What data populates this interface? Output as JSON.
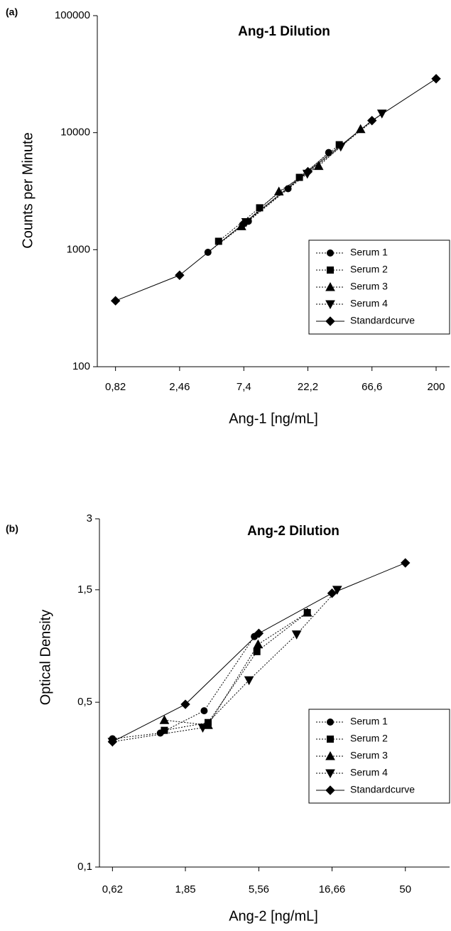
{
  "chart_data": [
    {
      "type": "line",
      "panel_label": "(a)",
      "title": "Ang-1 Dilution",
      "x_label": "Ang-1 [ng/mL]",
      "y_label": "Counts per Minute",
      "xscale": "log",
      "yscale": "log",
      "xlim": [
        0.6,
        252
      ],
      "ylim": [
        100,
        100000
      ],
      "xticks": [
        {
          "value": 0.82,
          "label": "0,82"
        },
        {
          "value": 2.46,
          "label": "2,46"
        },
        {
          "value": 7.4,
          "label": "7,4"
        },
        {
          "value": 22.2,
          "label": "22,2"
        },
        {
          "value": 66.6,
          "label": "66,6"
        },
        200
      ],
      "yticks": [
        100,
        1000,
        10000,
        100000
      ],
      "legend": "lower right",
      "series": [
        {
          "name": "Serum 1",
          "color": "#000000",
          "marker": "circle",
          "linestyle": "dotted",
          "x": [
            4.0,
            8.0,
            15.8,
            31.7
          ],
          "values": [
            950,
            1750,
            3320,
            6760
          ]
        },
        {
          "name": "Serum 2",
          "color": "#000000",
          "marker": "square",
          "linestyle": "dotted",
          "x": [
            4.8,
            9.7,
            19.2,
            38
          ],
          "values": [
            1180,
            2280,
            4150,
            7890
          ]
        },
        {
          "name": "Serum 3",
          "color": "#000000",
          "marker": "triangle",
          "linestyle": "dotted",
          "x": [
            7.1,
            13.5,
            26.7,
            54.8
          ],
          "values": [
            1585,
            3140,
            5190,
            10720
          ]
        },
        {
          "name": "Serum 4",
          "color": "#000000",
          "marker": "triangle-down",
          "linestyle": "dotted",
          "x": [
            7.7,
            22,
            39,
            79
          ],
          "values": [
            1720,
            4460,
            7600,
            14580
          ]
        },
        {
          "name": "Standardcurve",
          "color": "#000000",
          "marker": "diamond",
          "linestyle": "solid",
          "x": [
            0.82,
            2.46,
            7.4,
            22.2,
            66.6,
            200
          ],
          "values": [
            366,
            605,
            1676,
            4641,
            12680,
            28900
          ]
        }
      ]
    },
    {
      "type": "line",
      "panel_label": "(b)",
      "title": "Ang-2 Dilution",
      "x_label": "Ang-2 [ng/mL]",
      "y_label": "Optical Density",
      "xscale": "log",
      "yscale": "log",
      "xlim": [
        0.51,
        97
      ],
      "ylim": [
        0.1,
        3
      ],
      "xticks": [
        {
          "value": 0.62,
          "label": "0,62"
        },
        {
          "value": 1.85,
          "label": "1,85"
        },
        {
          "value": 5.56,
          "label": "5,56"
        },
        {
          "value": 16.66,
          "label": "16,66"
        },
        50
      ],
      "yticks": [
        {
          "value": 0.1,
          "label": "0,1"
        },
        {
          "value": 0.5,
          "label": "0,5"
        },
        {
          "value": 1.5,
          "label": "1,5"
        },
        3
      ],
      "legend": "lower right",
      "series": [
        {
          "name": "Serum 1",
          "color": "#000000",
          "marker": "circle",
          "linestyle": "dotted",
          "x": [
            0.62,
            1.27,
            2.45,
            5.2
          ],
          "values": [
            0.35,
            0.37,
            0.46,
            0.95
          ]
        },
        {
          "name": "Serum 2",
          "color": "#000000",
          "marker": "square",
          "linestyle": "dotted",
          "x": [
            1.35,
            2.6,
            5.4,
            11.5
          ],
          "values": [
            0.38,
            0.41,
            0.82,
            1.2
          ]
        },
        {
          "name": "Serum 3",
          "color": "#000000",
          "marker": "triangle",
          "linestyle": "dotted",
          "x": [
            1.35,
            2.6,
            5.5,
            11.5
          ],
          "values": [
            0.42,
            0.4,
            0.88,
            1.2
          ]
        },
        {
          "name": "Serum 4",
          "color": "#000000",
          "marker": "triangle-down",
          "linestyle": "dotted",
          "x": [
            0.62,
            2.4,
            4.8,
            9.8,
            18
          ],
          "values": [
            0.34,
            0.39,
            0.62,
            0.97,
            1.5
          ]
        },
        {
          "name": "Standardcurve",
          "color": "#000000",
          "marker": "diamond",
          "linestyle": "solid",
          "x": [
            0.62,
            1.85,
            5.56,
            16.66,
            50
          ],
          "values": [
            0.34,
            0.49,
            0.98,
            1.45,
            1.95
          ]
        }
      ]
    }
  ]
}
